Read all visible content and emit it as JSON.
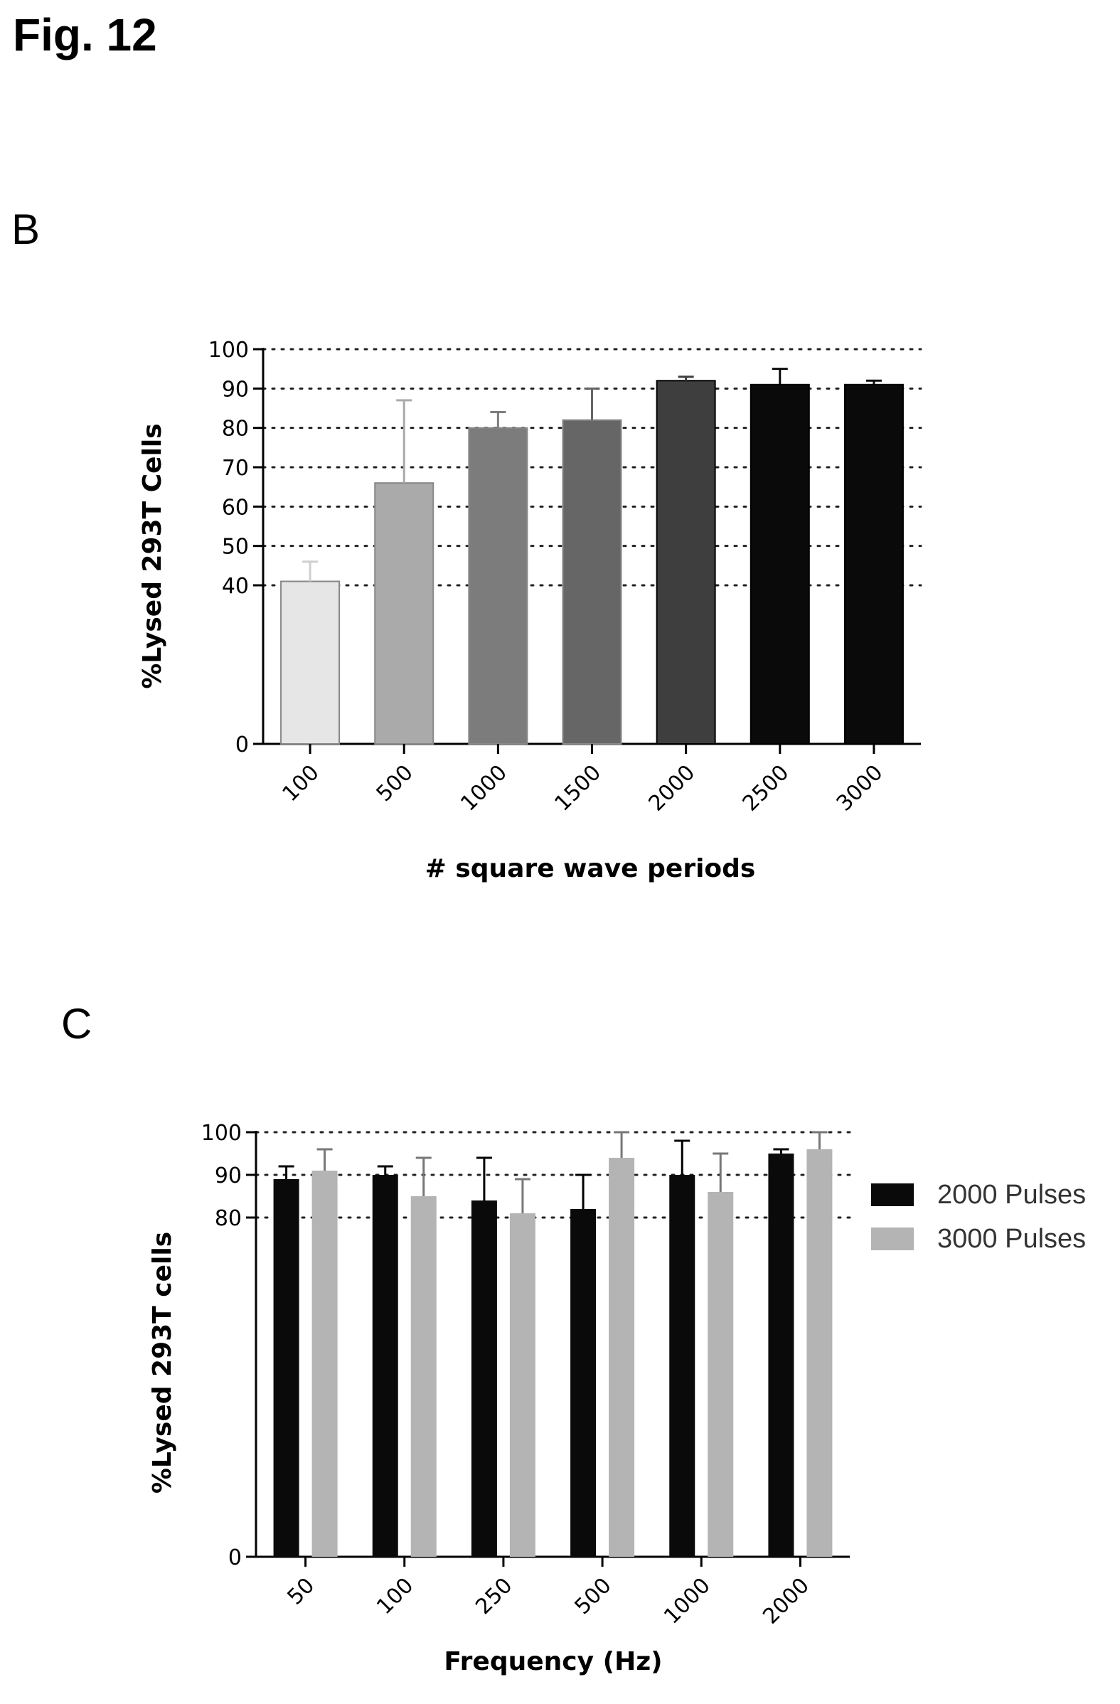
{
  "figure": {
    "title": "Fig. 12"
  },
  "panels": [
    {
      "letter": "B"
    },
    {
      "letter": "C"
    }
  ],
  "chart_data": [
    {
      "type": "bar",
      "categories": [
        "100",
        "500",
        "1000",
        "1500",
        "2000",
        "2500",
        "3000"
      ],
      "values": [
        41,
        66,
        80,
        82,
        92,
        91,
        91
      ],
      "errors": [
        5,
        21,
        4,
        8,
        1,
        4,
        1
      ],
      "bar_colors": [
        "#e6e6e6",
        "#aaaaaa",
        "#7c7c7c",
        "#666666",
        "#3e3e3e",
        "#0a0a0a",
        "#0a0a0a"
      ],
      "title": "",
      "xlabel": "# square wave periods",
      "ylabel": "%Lysed 293T Cells",
      "ylim": [
        0,
        100
      ],
      "y_ticks": [
        0,
        40,
        50,
        60,
        70,
        80,
        90,
        100
      ],
      "y_tick_labels": [
        "0",
        "40",
        "50",
        "60",
        "70",
        "80",
        "90",
        "100"
      ],
      "axis_break": {
        "from": 0,
        "to": 40
      },
      "gridlines": [
        40,
        50,
        60,
        70,
        80,
        90,
        100
      ],
      "grid": true,
      "legend": "none"
    },
    {
      "type": "bar",
      "categories": [
        "50",
        "100",
        "250",
        "500",
        "1000",
        "2000"
      ],
      "series": [
        {
          "name": "2000 Pulses",
          "color": "#0a0a0a",
          "values": [
            89,
            90,
            84,
            82,
            90,
            95
          ],
          "errors": [
            3,
            2,
            10,
            8,
            8,
            1
          ]
        },
        {
          "name": "3000 Pulses",
          "color": "#b4b4b4",
          "values": [
            91,
            85,
            81,
            94,
            86,
            96
          ],
          "errors": [
            5,
            9,
            8,
            6,
            9,
            4
          ]
        }
      ],
      "title": "",
      "xlabel": "Frequency (Hz)",
      "ylabel": "%Lysed 293T cells",
      "ylim": [
        0,
        100
      ],
      "y_ticks": [
        0,
        80,
        90,
        100
      ],
      "y_tick_labels": [
        "0",
        "80",
        "90",
        "100"
      ],
      "axis_break": {
        "from": 0,
        "to": 80
      },
      "gridlines": [
        80,
        90,
        100
      ],
      "grid": true,
      "legend": "right"
    }
  ]
}
